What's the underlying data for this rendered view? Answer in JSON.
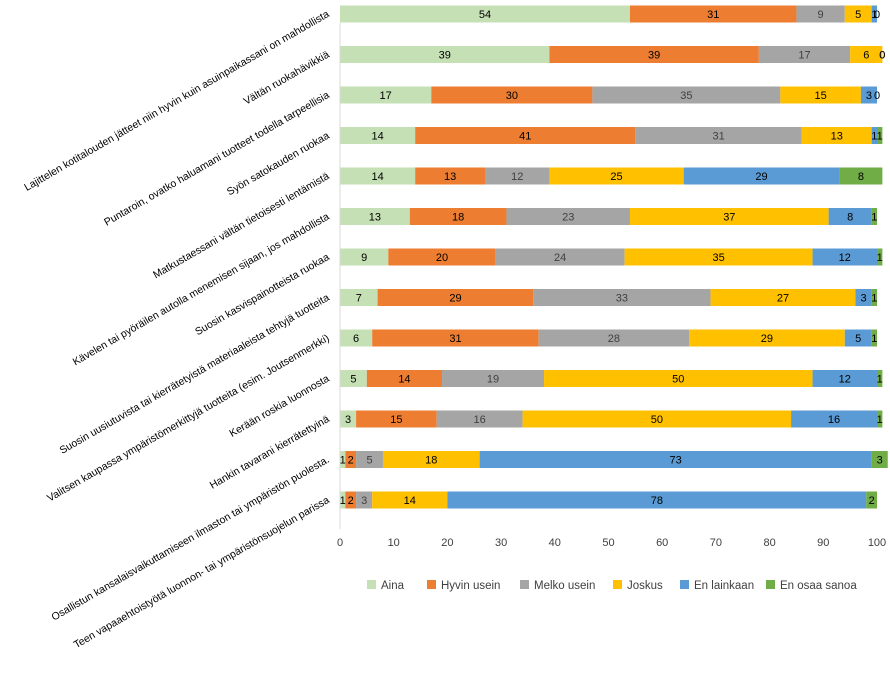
{
  "chart_data": {
    "type": "bar",
    "orientation": "horizontal",
    "stacked": true,
    "title": "",
    "xlabel": "",
    "ylabel": "",
    "xlim": [
      0,
      100
    ],
    "xticks": [
      0,
      10,
      20,
      30,
      40,
      50,
      60,
      70,
      80,
      90,
      100
    ],
    "grid": false,
    "legend_position": "bottom",
    "categories": [
      "Lajittelen kotitalouden jätteet niin hyvin kuin asuinpaikassani on mahdollista",
      "Vältän ruokahävikkiä",
      "Puntaroin, ovatko haluamani tuotteet todella tarpeellisia",
      "Syön satokauden ruokaa",
      "Matkustaessani vältän tietoisesti lentämistä",
      "Kävelen tai pyöräilen autolla menemisen sijaan, jos mahdollista",
      "Suosin kasvispainotteista ruokaa",
      "Suosin uusiutuvista tai kierrätetyistä materiaaleista tehtyjä tuotteita",
      "Valitsen kaupassa ympäristömerkittyjä tuotteita (esim. Joutsenmerkki)",
      "Kerään roskia luonnosta",
      "Hankin tavarani kierrätettyinä",
      "Osallistun kansalaisvaikuttamiseen ilmaston tai ympäristön puolesta.",
      "Teen vapaaehtoistyötä luonnon- tai ympäristönsuojelun parissa"
    ],
    "series": [
      {
        "name": "Aina",
        "color": "#c5e0b4",
        "label_color": "#000000",
        "values": [
          54,
          39,
          17,
          14,
          14,
          13,
          9,
          7,
          6,
          5,
          3,
          1,
          1
        ]
      },
      {
        "name": "Hyvin usein",
        "color": "#ed7d31",
        "label_color": "#000000",
        "values": [
          31,
          39,
          30,
          41,
          13,
          18,
          20,
          29,
          31,
          14,
          15,
          2,
          2
        ]
      },
      {
        "name": "Melko usein",
        "color": "#a5a5a5",
        "label_color": "#404040",
        "values": [
          9,
          17,
          35,
          31,
          12,
          23,
          24,
          33,
          28,
          19,
          16,
          5,
          3
        ]
      },
      {
        "name": "Joskus",
        "color": "#ffc000",
        "label_color": "#000000",
        "values": [
          5,
          6,
          15,
          13,
          25,
          37,
          35,
          27,
          29,
          50,
          50,
          18,
          14
        ]
      },
      {
        "name": "En lainkaan",
        "color": "#5b9bd5",
        "label_color": "#000000",
        "values": [
          1,
          0,
          3,
          1,
          29,
          8,
          12,
          3,
          5,
          12,
          16,
          73,
          78
        ]
      },
      {
        "name": "En osaa sanoa",
        "color": "#70ad47",
        "label_color": "#000000",
        "values": [
          0,
          0,
          0,
          1,
          8,
          1,
          1,
          1,
          1,
          1,
          1,
          3,
          2
        ]
      }
    ]
  }
}
